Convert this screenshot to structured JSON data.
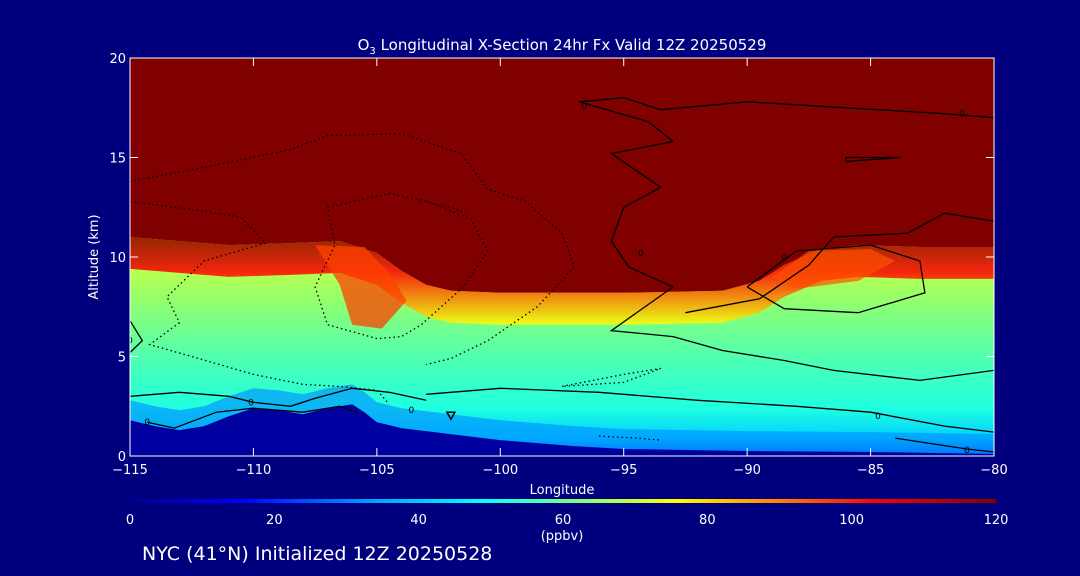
{
  "chart_data": {
    "type": "heatmap",
    "title_main": "O",
    "title_sub": "3",
    "title_rest": " Longitudinal X-Section 24hr  Fx Valid 12Z 20250529",
    "xlabel": "Longitude",
    "ylabel": "Altitude (km)",
    "xlim": [
      -115,
      -80
    ],
    "ylim": [
      0,
      20
    ],
    "x_ticks": [
      -115,
      -110,
      -105,
      -100,
      -95,
      -90,
      -85,
      -80
    ],
    "x_tick_labels": [
      "−115",
      "−110",
      "−105",
      "−100",
      "−95",
      "−90",
      "−85",
      "−80"
    ],
    "y_ticks": [
      0,
      5,
      10,
      15,
      20
    ],
    "y_tick_labels": [
      "0",
      "5",
      "10",
      "15",
      "20"
    ],
    "colorbar": {
      "min": 0,
      "max": 120,
      "ticks": [
        0,
        20,
        40,
        60,
        80,
        100,
        120
      ],
      "tick_labels": [
        "0",
        "20",
        "40",
        "60",
        "80",
        "100",
        "120"
      ],
      "units": "(ppbv)",
      "colors": [
        "#00008b",
        "#0000ff",
        "#00a0ff",
        "#00ffff",
        "#80ff80",
        "#ffff00",
        "#ff8000",
        "#ff0000",
        "#800000"
      ]
    },
    "tropopause_height_km": [
      [
        -115,
        11.0
      ],
      [
        -113,
        10.8
      ],
      [
        -111,
        10.6
      ],
      [
        -108.5,
        10.7
      ],
      [
        -106.5,
        10.8
      ],
      [
        -105,
        10.2
      ],
      [
        -104,
        9.3
      ],
      [
        -103,
        8.6
      ],
      [
        -102,
        8.3
      ],
      [
        -100,
        8.2
      ],
      [
        -95,
        8.2
      ],
      [
        -91,
        8.3
      ],
      [
        -89.5,
        8.8
      ],
      [
        -88.5,
        9.6
      ],
      [
        -87,
        10.4
      ],
      [
        -85.5,
        10.6
      ],
      [
        -83,
        10.5
      ],
      [
        -80,
        10.5
      ]
    ],
    "surface_height_km": [
      [
        -115,
        1.8
      ],
      [
        -114,
        1.5
      ],
      [
        -113,
        1.3
      ],
      [
        -112,
        1.5
      ],
      [
        -111,
        2.0
      ],
      [
        -110,
        2.4
      ],
      [
        -109,
        2.3
      ],
      [
        -108,
        2.1
      ],
      [
        -107,
        2.4
      ],
      [
        -106,
        2.6
      ],
      [
        -105.5,
        2.2
      ],
      [
        -105,
        1.7
      ],
      [
        -104,
        1.4
      ],
      [
        -102,
        1.1
      ],
      [
        -100,
        0.8
      ],
      [
        -97,
        0.5
      ],
      [
        -95,
        0.35
      ],
      [
        -90,
        0.25
      ],
      [
        -85,
        0.2
      ],
      [
        -80,
        0.1
      ]
    ],
    "contour_labels": [
      {
        "x": -110.1,
        "y": 2.7,
        "text": "0"
      },
      {
        "x": -114.3,
        "y": 1.7,
        "text": "0"
      },
      {
        "x": -115,
        "y": 5.8,
        "text": "0"
      },
      {
        "x": -103.6,
        "y": 2.3,
        "text": "0"
      },
      {
        "x": -96.6,
        "y": 17.6,
        "text": "0"
      },
      {
        "x": -81.3,
        "y": 17.2,
        "text": "0"
      },
      {
        "x": -94.3,
        "y": 10.2,
        "text": "0"
      },
      {
        "x": -88.5,
        "y": 10.0,
        "text": "0"
      },
      {
        "x": -84.7,
        "y": 2.0,
        "text": "0"
      },
      {
        "x": -81.1,
        "y": 0.3,
        "text": "0"
      }
    ],
    "location_marker": {
      "x": -102,
      "y": 2.0
    }
  },
  "footer": "NYC (41°N) Initialized 12Z 20250528"
}
